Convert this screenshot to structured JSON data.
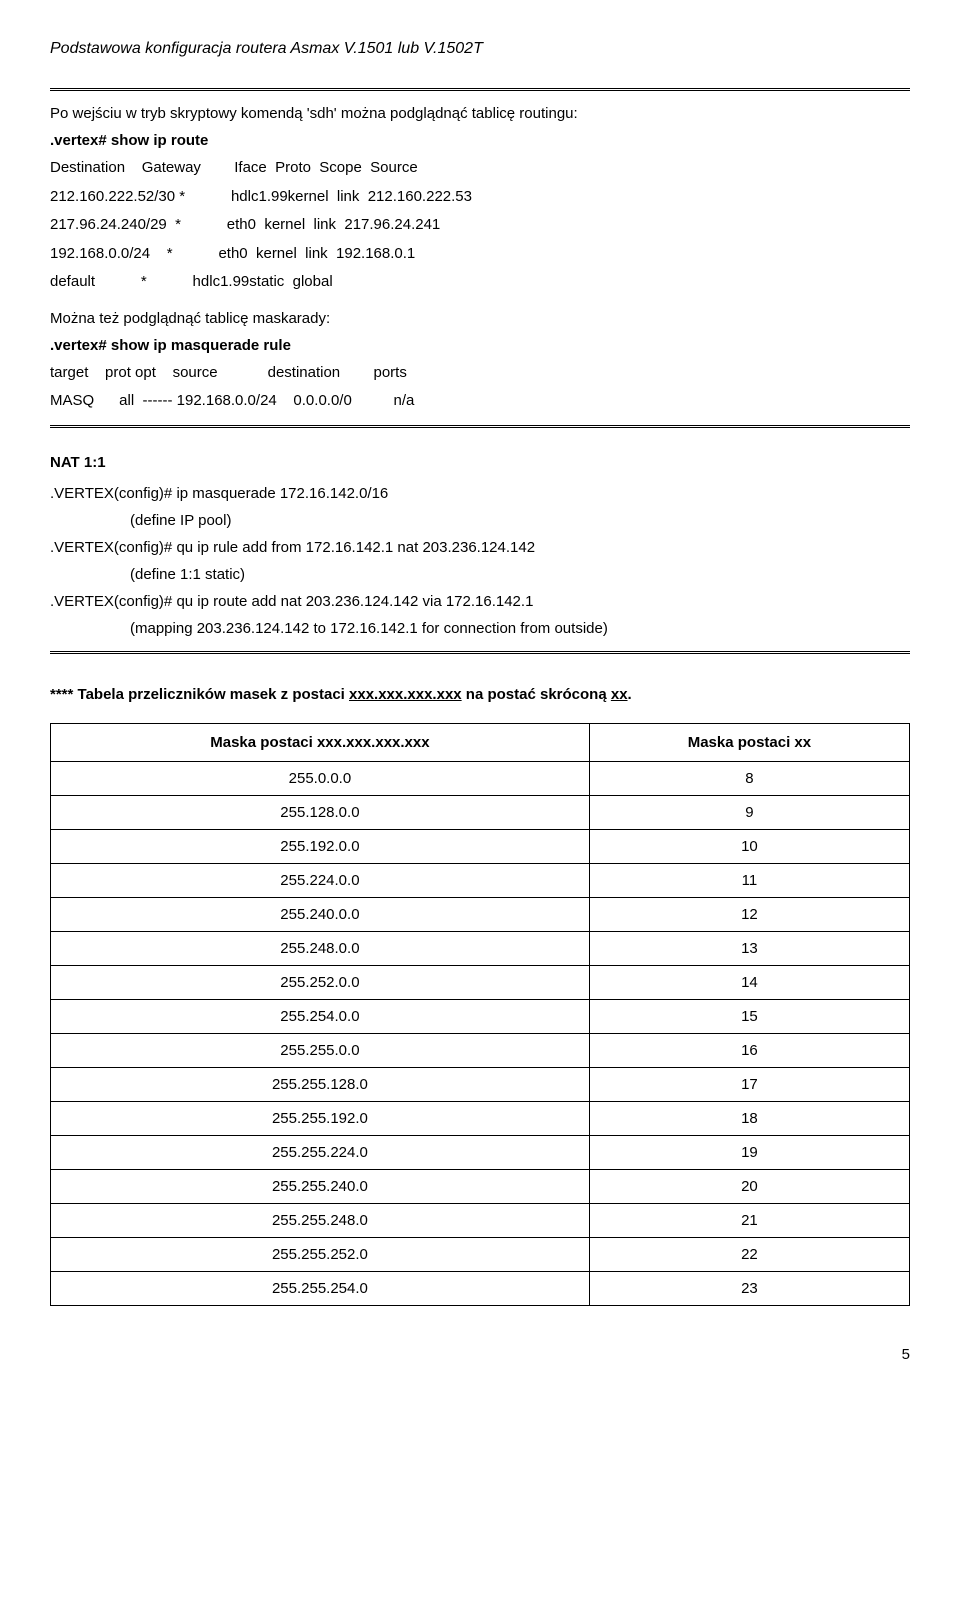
{
  "header": {
    "title": "Podstawowa konfiguracja routera Asmax V.1501 lub V.1502T"
  },
  "intro": {
    "line1": "Po wejściu w tryb skryptowy komendą 'sdh' można podglądnąć tablicę routingu:",
    "cmd1": ".vertex# show ip route"
  },
  "route_table": {
    "header": "Destination    Gateway        Iface  Proto  Scope  Source",
    "r1": "212.160.222.52/30 *           hdlc1.99kernel  link  212.160.222.53",
    "r2": "217.96.24.240/29  *           eth0  kernel  link  217.96.24.241",
    "r3": "192.168.0.0/24    *           eth0  kernel  link  192.168.0.1",
    "r4": "default           *           hdlc1.99static  global"
  },
  "masq": {
    "line1": "Można też podglądnąć tablicę maskarady:",
    "cmd": ".vertex# show ip masquerade rule",
    "header": "target    prot opt    source            destination        ports",
    "row": "MASQ      all  ------ 192.168.0.0/24    0.0.0.0/0          n/a"
  },
  "nat": {
    "head": "NAT 1:1",
    "c1": ".VERTEX(config)# ip masquerade 172.16.142.0/16",
    "c1note": "(define IP pool)",
    "c2": ".VERTEX(config)# qu ip rule add from 172.16.142.1 nat 203.236.124.142",
    "c2note": "(define 1:1 static)",
    "c3": ".VERTEX(config)# qu ip route add nat 203.236.124.142 via 172.16.142.1",
    "c3note": "(mapping 203.236.124.142 to 172.16.142.1 for connection from outside)"
  },
  "table_section": {
    "prefix": "**** Tabela przeliczników masek z postaci ",
    "u1": "xxx.xxx.xxx.xxx",
    "mid": " na postać skróconą ",
    "u2": "xx",
    "suffix": ".",
    "col1": "Maska postaci xxx.xxx.xxx.xxx",
    "col2": "Maska postaci xx",
    "rows": [
      [
        "255.0.0.0",
        "8"
      ],
      [
        "255.128.0.0",
        "9"
      ],
      [
        "255.192.0.0",
        "10"
      ],
      [
        "255.224.0.0",
        "11"
      ],
      [
        "255.240.0.0",
        "12"
      ],
      [
        "255.248.0.0",
        "13"
      ],
      [
        "255.252.0.0",
        "14"
      ],
      [
        "255.254.0.0",
        "15"
      ],
      [
        "255.255.0.0",
        "16"
      ],
      [
        "255.255.128.0",
        "17"
      ],
      [
        "255.255.192.0",
        "18"
      ],
      [
        "255.255.224.0",
        "19"
      ],
      [
        "255.255.240.0",
        "20"
      ],
      [
        "255.255.248.0",
        "21"
      ],
      [
        "255.255.252.0",
        "22"
      ],
      [
        "255.255.254.0",
        "23"
      ]
    ]
  },
  "page": "5"
}
